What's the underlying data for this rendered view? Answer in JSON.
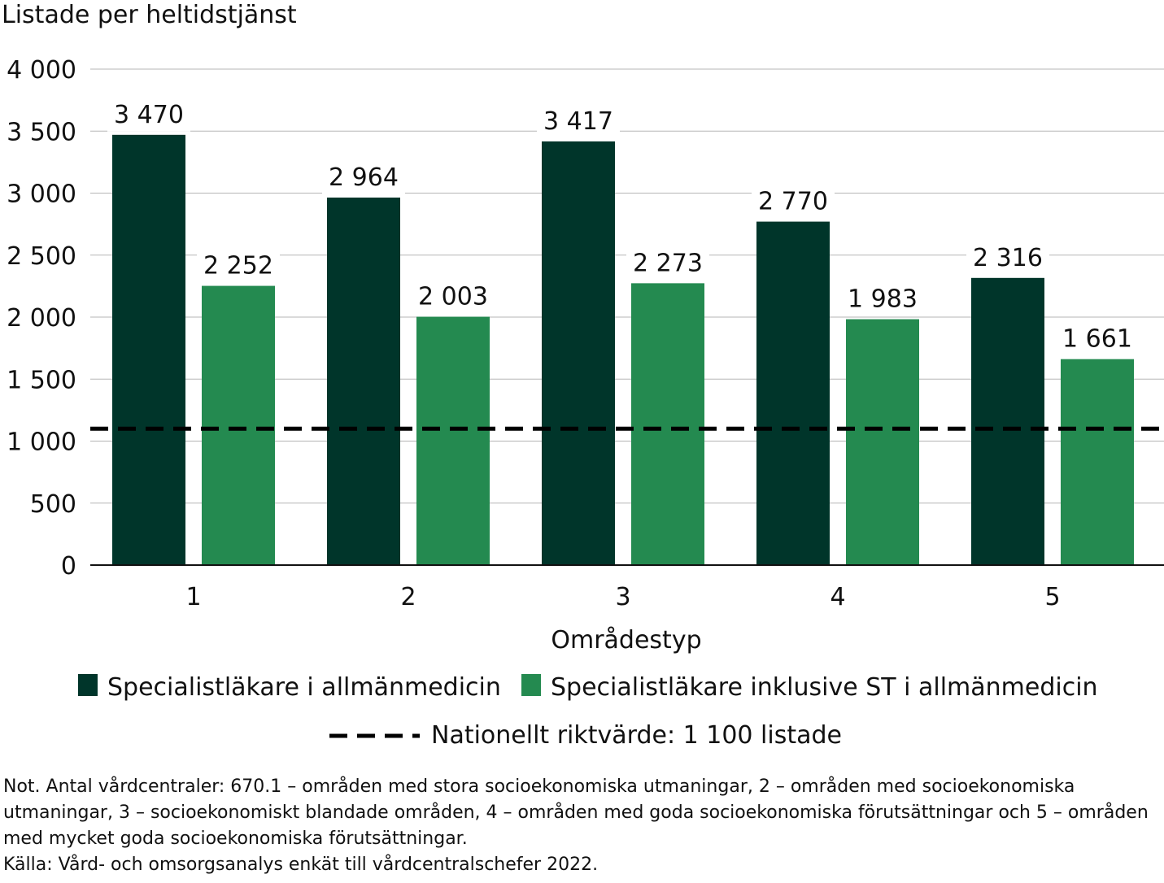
{
  "chart_data": {
    "type": "bar",
    "ylabel": "Listade per heltidstjänst",
    "xlabel": "Områdestyp",
    "categories": [
      "1",
      "2",
      "3",
      "4",
      "5"
    ],
    "ylim": [
      0,
      4000
    ],
    "yticks": [
      0,
      500,
      1000,
      1500,
      2000,
      2500,
      3000,
      3500,
      4000
    ],
    "ytick_labels": [
      "0",
      "500",
      "1 000",
      "1 500",
      "2 000",
      "2 500",
      "3 000",
      "3 500",
      "4 000"
    ],
    "grid": true,
    "legend_position": "bottom",
    "series": [
      {
        "name": "Specialistläkare i allmänmedicin",
        "color": "#00352a",
        "values": [
          3470,
          2964,
          3417,
          2770,
          2316
        ],
        "labels": [
          "3 470",
          "2 964",
          "3 417",
          "2 770",
          "2 316"
        ]
      },
      {
        "name": "Specialistläkare inklusive ST i allmänmedicin",
        "color": "#248a50",
        "values": [
          2252,
          2003,
          2273,
          1983,
          1661
        ],
        "labels": [
          "2 252",
          "2 003",
          "2 273",
          "1 983",
          "1 661"
        ]
      }
    ],
    "reference_line": {
      "value": 1100,
      "label": "Nationellt riktvärde: 1 100 listade",
      "style": "dashed",
      "color": "#000000"
    }
  },
  "note": {
    "text": "Not. Antal vårdcentraler: 670.1 – områden med stora socioekonomiska utmaningar, 2 – områden med socioekonomiska utmaningar, 3 – socioekonomiskt blandade områden, 4 – områden med goda socioekonomiska förutsättningar och 5 – områden med mycket goda socioekonomiska förutsättningar.",
    "source": "Källa: Vård- och omsorgsanalys enkät till vårdcentralschefer 2022."
  }
}
